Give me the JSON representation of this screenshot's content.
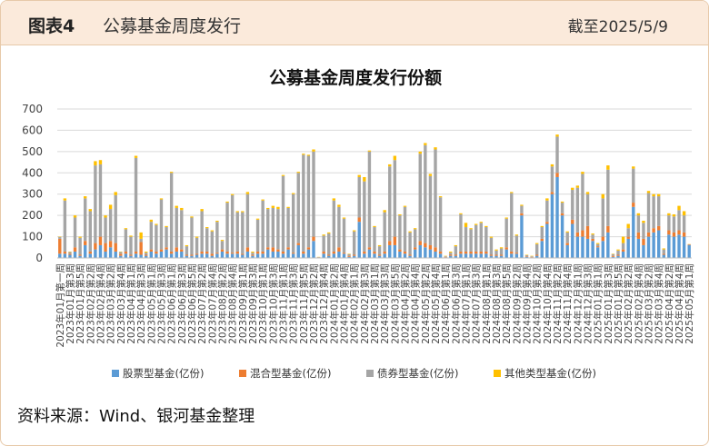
{
  "header": {
    "label": "图表4",
    "title": "公募基金周度发行",
    "date": "截至2025/5/9"
  },
  "source": "资料来源：Wind、银河基金整理",
  "chart_data": {
    "type": "stacked-bar",
    "title": "公募基金周度发行份额",
    "categories": [
      "2023年01月第一周",
      null,
      "2023年01月第3周",
      null,
      "2023年01月第5周",
      null,
      "2023年02月第2周",
      null,
      "2023年02月第4周",
      null,
      "2023年03月第2周",
      null,
      "2023年03月第4周",
      null,
      "2023年04月第1周",
      null,
      "2023年04月第3周",
      null,
      "2023年05月第1周",
      null,
      "2023年05月第3周",
      null,
      "2023年06月第1周",
      null,
      "2023年06月第3周",
      null,
      "2023年06月第5周",
      null,
      "2023年07月第2周",
      null,
      "2023年07月第4周",
      null,
      "2023年08月第2周",
      null,
      "2023年08月第4周",
      null,
      "2023年09月第1周",
      null,
      "2023年09月第3周",
      null,
      "2023年10月第1周",
      null,
      "2023年10月第3周",
      null,
      "2023年11月第1周",
      null,
      "2023年11月第3周",
      null,
      "2023年11月第5周",
      null,
      "2023年12月第2周",
      null,
      "2023年12月第4周",
      null,
      "2024年01月第2周",
      null,
      "2024年01月第4周",
      null,
      "2024年02月第1周",
      null,
      "2024年02月第3周",
      null,
      "2024年03月第1周",
      null,
      "2024年03月第3周",
      null,
      "2024年03月第5周",
      null,
      "2024年04月第2周",
      null,
      "2024年04月第4周",
      null,
      "2024年05月第2周",
      null,
      "2024年05月第4周",
      null,
      "2024年06月第1周",
      null,
      "2024年06月第3周",
      null,
      "2024年07月第1周",
      null,
      "2024年07月第3周",
      null,
      "2024年08月第1周",
      null,
      "2024年08月第3周",
      null,
      "2024年08月第5周",
      null,
      "2024年09月第2周",
      null,
      "2024年09月第4周",
      null,
      "2024年10月第2周",
      null,
      "2024年10月第4周",
      null,
      "2024年11月第2周",
      null,
      "2024年11月第4周",
      null,
      "2024年12月第1周",
      null,
      "2024年12月第3周",
      null,
      "2025年01月第1周",
      null,
      "2025年01月第3周",
      null,
      "2025年01月第5周",
      null,
      "2025年02月第2周",
      null,
      "2025年02月第4周",
      null,
      "2025年03月第2周",
      null,
      "2025年03月第4周",
      null,
      "2025年04月第2周",
      null,
      "2025年04月第4周",
      null,
      "2025年05月第1周"
    ],
    "series": [
      {
        "name": "股票型基金(亿份)",
        "color": "#5b9bd5",
        "values": [
          20,
          20,
          15,
          30,
          10,
          60,
          20,
          40,
          60,
          30,
          50,
          30,
          10,
          20,
          10,
          20,
          15,
          10,
          30,
          20,
          30,
          40,
          20,
          30,
          30,
          10,
          10,
          15,
          20,
          20,
          10,
          20,
          30,
          20,
          20,
          20,
          15,
          30,
          10,
          20,
          20,
          40,
          30,
          30,
          20,
          40,
          20,
          60,
          20,
          40,
          80,
          2,
          20,
          10,
          20,
          30,
          20,
          5,
          10,
          170,
          20,
          40,
          20,
          10,
          20,
          60,
          60,
          30,
          20,
          10,
          40,
          60,
          50,
          40,
          30,
          20,
          3,
          10,
          10,
          20,
          20,
          20,
          20,
          20,
          20,
          10,
          10,
          10,
          40,
          20,
          20,
          200,
          5,
          3,
          10,
          80,
          160,
          300,
          380,
          200,
          60,
          160,
          100,
          100,
          90,
          80,
          50,
          80,
          120,
          5,
          10,
          30,
          90,
          240,
          90,
          60,
          100,
          120,
          130,
          15,
          110,
          100,
          110,
          100,
          60
        ]
      },
      {
        "name": "混合型基金(亿份)",
        "color": "#ed7d31",
        "values": [
          70,
          10,
          5,
          20,
          5,
          20,
          10,
          30,
          40,
          40,
          30,
          40,
          10,
          10,
          5,
          10,
          60,
          5,
          10,
          10,
          10,
          10,
          10,
          20,
          10,
          5,
          5,
          5,
          10,
          10,
          10,
          5,
          10,
          10,
          5,
          10,
          5,
          20,
          5,
          10,
          10,
          10,
          20,
          10,
          10,
          10,
          5,
          10,
          10,
          10,
          20,
          1,
          10,
          5,
          10,
          20,
          5,
          5,
          5,
          20,
          10,
          10,
          10,
          5,
          10,
          20,
          40,
          10,
          10,
          5,
          10,
          20,
          20,
          20,
          20,
          10,
          2,
          5,
          5,
          10,
          10,
          10,
          10,
          10,
          10,
          5,
          5,
          5,
          10,
          10,
          5,
          10,
          3,
          2,
          5,
          10,
          10,
          10,
          20,
          10,
          10,
          20,
          20,
          30,
          60,
          10,
          5,
          20,
          30,
          5,
          5,
          10,
          10,
          20,
          30,
          30,
          20,
          20,
          20,
          5,
          20,
          20,
          20,
          20,
          2
        ]
      },
      {
        "name": "债券型基金(亿份)",
        "color": "#a5a5a5",
        "values": [
          8,
          240,
          8,
          140,
          80,
          200,
          190,
          365,
          340,
          120,
          150,
          225,
          8,
          105,
          85,
          440,
          15,
          10,
          130,
          125,
          235,
          95,
          370,
          185,
          185,
          40,
          175,
          75,
          190,
          110,
          105,
          145,
          40,
          230,
          270,
          185,
          195,
          250,
          10,
          150,
          240,
          180,
          185,
          190,
          355,
          185,
          275,
          330,
          455,
          430,
          400,
          1,
          75,
          100,
          240,
          190,
          160,
          8,
          110,
          190,
          330,
          450,
          115,
          40,
          185,
          350,
          360,
          160,
          210,
          105,
          85,
          410,
          460,
          325,
          460,
          255,
          3,
          10,
          40,
          175,
          115,
          105,
          125,
          135,
          115,
          80,
          20,
          30,
          135,
          275,
          80,
          35,
          5,
          3,
          50,
          55,
          100,
          120,
          170,
          50,
          50,
          140,
          210,
          265,
          150,
          20,
          10,
          180,
          265,
          8,
          20,
          30,
          40,
          160,
          80,
          75,
          185,
          150,
          140,
          20,
          70,
          75,
          95,
          80,
          2
        ]
      },
      {
        "name": "其他类型基金(亿份)",
        "color": "#ffc000",
        "values": [
          2,
          10,
          2,
          10,
          5,
          10,
          10,
          20,
          20,
          10,
          20,
          15,
          2,
          5,
          5,
          10,
          30,
          5,
          10,
          5,
          5,
          5,
          5,
          10,
          10,
          5,
          5,
          5,
          10,
          5,
          5,
          5,
          5,
          5,
          5,
          5,
          5,
          10,
          5,
          5,
          5,
          5,
          10,
          10,
          5,
          5,
          5,
          5,
          5,
          5,
          10,
          1,
          5,
          5,
          10,
          10,
          5,
          2,
          5,
          10,
          20,
          5,
          5,
          5,
          10,
          10,
          20,
          5,
          5,
          5,
          5,
          10,
          10,
          10,
          10,
          5,
          2,
          5,
          5,
          5,
          20,
          5,
          5,
          5,
          5,
          5,
          5,
          5,
          5,
          5,
          5,
          5,
          2,
          2,
          5,
          5,
          10,
          10,
          10,
          5,
          5,
          10,
          10,
          10,
          10,
          5,
          5,
          20,
          20,
          2,
          5,
          30,
          20,
          10,
          10,
          10,
          10,
          10,
          10,
          5,
          10,
          10,
          20,
          20,
          1
        ]
      }
    ],
    "ylim": [
      0,
      700
    ],
    "yticks": [
      0,
      100,
      200,
      300,
      400,
      500,
      600,
      700
    ],
    "grid": true
  }
}
